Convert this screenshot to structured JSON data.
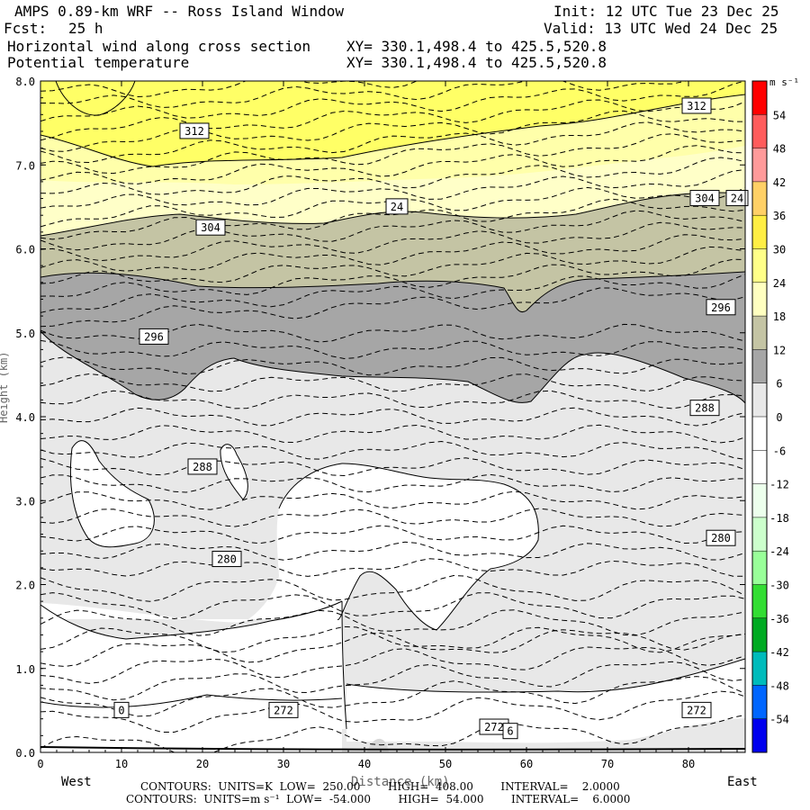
{
  "header": {
    "title": "AMPS 0.89-km WRF -- Ross Island Window",
    "fcst_label": "Fcst:",
    "fcst_value": "25 h",
    "init": "Init: 12 UTC Tue 23 Dec 25",
    "valid": "Valid: 13 UTC Wed 24 Dec 25",
    "field1": "Horizontal wind along cross section",
    "field2": "Potential temperature",
    "xy1": "XY= 330.1,498.4 to 425.5,520.8",
    "xy2": "XY= 330.1,498.4 to 425.5,520.8"
  },
  "footer": {
    "line1": "CONTOURS:  UNITS=K  LOW=  250.00        HIGH=  408.00        INTERVAL=    2.0000",
    "line2": "CONTOURS:  UNITS=m s⁻¹  LOW=  -54.000        HIGH=  54.000        INTERVAL=    6.0000"
  },
  "chart_data": {
    "type": "heatmap",
    "title": "Horizontal wind along cross section / Potential temperature",
    "xlabel": "Distance (km)",
    "ylabel": "Height (km)",
    "xlim": [
      0,
      87
    ],
    "ylim": [
      0,
      8
    ],
    "x_ticks": [
      "0",
      "10",
      "20",
      "30",
      "40",
      "50",
      "60",
      "70",
      "80"
    ],
    "y_ticks": [
      "0.0",
      "1.0",
      "2.0",
      "3.0",
      "4.0",
      "5.0",
      "6.0",
      "7.0",
      "8.0"
    ],
    "x_end_labels": {
      "left": "West",
      "right": "East"
    },
    "colorbar": {
      "units": "m s⁻¹",
      "levels": [
        "54",
        "48",
        "42",
        "36",
        "30",
        "24",
        "18",
        "12",
        "6",
        "0",
        "-6",
        "-12",
        "-18",
        "-24",
        "-30",
        "-36",
        "-42",
        "-48",
        "-54"
      ],
      "colors": [
        "#ff0000",
        "#ff5c5c",
        "#ff9a9a",
        "#ffd066",
        "#ffee44",
        "#ffff88",
        "#ffffc0",
        "#c4c4a4",
        "#a6a6a6",
        "#e8e8e8",
        "#ffffff",
        "#ffffff",
        "#ecffec",
        "#ccffcc",
        "#99ff99",
        "#33dd33",
        "#00aa22",
        "#00bbbb",
        "#0066ff",
        "#0000ee"
      ]
    },
    "wind_regions_ms": [
      {
        "name": "yellow band",
        "range": [
          24,
          36
        ],
        "height_km": [
          6.2,
          8.0
        ]
      },
      {
        "name": "light yellow band",
        "range": [
          18,
          24
        ],
        "height_km": [
          6.1,
          7.2
        ]
      },
      {
        "name": "olive-gray band",
        "range": [
          12,
          18
        ],
        "height_km": [
          5.2,
          6.6
        ]
      },
      {
        "name": "dark gray band",
        "range": [
          6,
          12
        ],
        "height_km": [
          4.1,
          5.7
        ]
      },
      {
        "name": "light gray field",
        "range": [
          0,
          6
        ],
        "height_km": [
          0.3,
          4.8
        ]
      },
      {
        "name": "white (calm) pockets",
        "range": [
          -6,
          0
        ],
        "height_km": [
          0.0,
          3.8
        ]
      }
    ],
    "theta_labels_K": [
      {
        "text": "312",
        "x": 19,
        "y": 7.4
      },
      {
        "text": "312",
        "x": 81,
        "y": 7.7
      },
      {
        "text": "304",
        "x": 21,
        "y": 6.25
      },
      {
        "text": "304",
        "x": 82,
        "y": 6.6
      },
      {
        "text": "296",
        "x": 14,
        "y": 4.95
      },
      {
        "text": "296",
        "x": 84,
        "y": 5.3
      },
      {
        "text": "288",
        "x": 20,
        "y": 3.4
      },
      {
        "text": "288",
        "x": 82,
        "y": 4.1
      },
      {
        "text": "280",
        "x": 23,
        "y": 2.3
      },
      {
        "text": "280",
        "x": 84,
        "y": 2.55
      },
      {
        "text": "272",
        "x": 30,
        "y": 0.5
      },
      {
        "text": "272",
        "x": 81,
        "y": 0.5
      },
      {
        "text": "272",
        "x": 56,
        "y": 0.3
      }
    ],
    "wind_labels_ms": [
      {
        "text": "24",
        "x": 44,
        "y": 6.5
      },
      {
        "text": "0",
        "x": 10,
        "y": 0.5
      },
      {
        "text": "6",
        "x": 58,
        "y": 0.25
      },
      {
        "text": "24",
        "x": 86,
        "y": 6.6
      }
    ]
  }
}
